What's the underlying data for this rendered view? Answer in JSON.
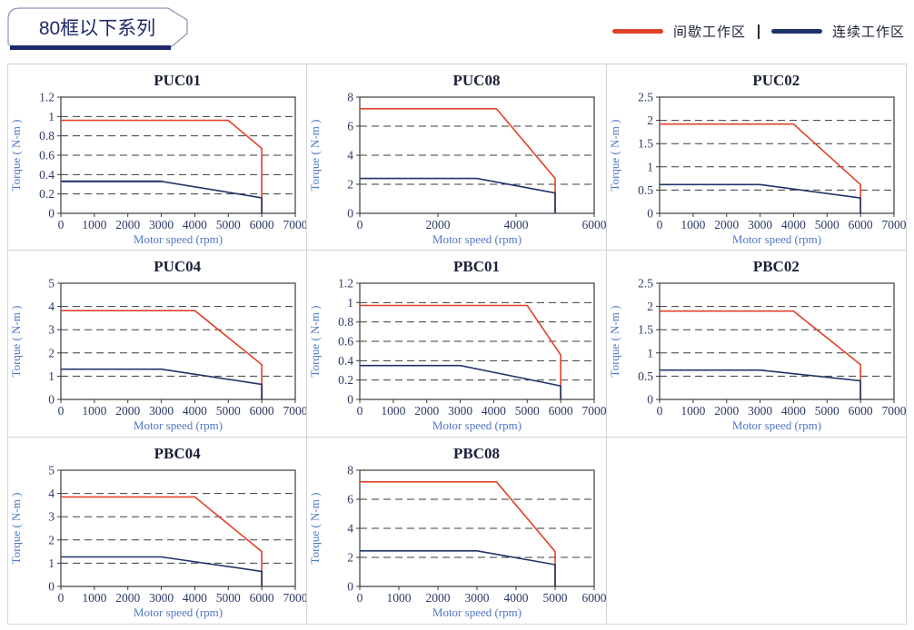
{
  "header": {
    "title": "80框以下系列"
  },
  "legend": {
    "items": [
      {
        "label": "间歇工作区",
        "color": "#e04228"
      },
      {
        "label": "连续工作区",
        "color": "#20346a"
      }
    ],
    "separator": "|"
  },
  "chart_data": [
    {
      "type": "line",
      "title": "PUC01",
      "xlabel": "Motor speed (rpm)",
      "ylabel": "Torque ( N-m )",
      "xlim": [
        0,
        7000
      ],
      "ylim": [
        0,
        1.2
      ],
      "xticks": [
        0,
        1000,
        2000,
        3000,
        4000,
        5000,
        6000,
        7000
      ],
      "yticks": [
        0,
        0.2,
        0.4,
        0.6,
        0.8,
        1,
        1.2
      ],
      "grid": "dashed-horizontal",
      "legend_position": "none",
      "series": [
        {
          "name": "连续工作区",
          "color": "#a9b2c8",
          "width": 3,
          "points": [
            [
              0,
              0.33
            ],
            [
              3000,
              0.33
            ]
          ]
        },
        {
          "name": "间歇工作区",
          "color": "#e04228",
          "width": 1.6,
          "points": [
            [
              0,
              0.96
            ],
            [
              5000,
              0.96
            ],
            [
              6000,
              0.67
            ],
            [
              6000,
              0
            ]
          ]
        },
        {
          "name": "连续工作区",
          "color": "#20346a",
          "width": 1.6,
          "points": [
            [
              0,
              0.33
            ],
            [
              3000,
              0.33
            ],
            [
              6000,
              0.16
            ],
            [
              6000,
              0
            ]
          ]
        }
      ]
    },
    {
      "type": "line",
      "title": "PUC08",
      "xlabel": "Motor speed (rpm)",
      "ylabel": "Torque ( N-m )",
      "xlim": [
        0,
        6000
      ],
      "ylim": [
        0,
        8
      ],
      "xticks": [
        0,
        2000,
        4000,
        6000
      ],
      "yticks": [
        0,
        2,
        4,
        6,
        8
      ],
      "grid": "dashed-horizontal",
      "legend_position": "none",
      "series": [
        {
          "name": "间歇工作区",
          "color": "#e04228",
          "width": 1.6,
          "points": [
            [
              0,
              7.2
            ],
            [
              3500,
              7.2
            ],
            [
              5000,
              2.4
            ],
            [
              5000,
              0
            ]
          ]
        },
        {
          "name": "连续工作区",
          "color": "#20346a",
          "width": 1.6,
          "points": [
            [
              0,
              2.4
            ],
            [
              3000,
              2.4
            ],
            [
              5000,
              1.4
            ],
            [
              5000,
              0
            ]
          ]
        }
      ]
    },
    {
      "type": "line",
      "title": "PUC02",
      "xlabel": "Motor speed (rpm)",
      "ylabel": "Torque ( N-m )",
      "xlim": [
        0,
        7000
      ],
      "ylim": [
        0,
        2.5
      ],
      "xticks": [
        0,
        1000,
        2000,
        3000,
        4000,
        5000,
        6000,
        7000
      ],
      "yticks": [
        0,
        0.5,
        1,
        1.5,
        2,
        2.5
      ],
      "grid": "dashed-horizontal",
      "legend_position": "none",
      "series": [
        {
          "name": "间歇工作区",
          "color": "#e04228",
          "width": 1.6,
          "points": [
            [
              0,
              1.92
            ],
            [
              4000,
              1.92
            ],
            [
              6000,
              0.62
            ],
            [
              6000,
              0
            ]
          ]
        },
        {
          "name": "连续工作区",
          "color": "#20346a",
          "width": 1.6,
          "points": [
            [
              0,
              0.62
            ],
            [
              3000,
              0.62
            ],
            [
              6000,
              0.33
            ],
            [
              6000,
              0
            ]
          ]
        }
      ]
    },
    {
      "type": "line",
      "title": "PUC04",
      "xlabel": "Motor speed (rpm)",
      "ylabel": "Torque ( N-m )",
      "xlim": [
        0,
        7000
      ],
      "ylim": [
        0,
        5
      ],
      "xticks": [
        0,
        1000,
        2000,
        3000,
        4000,
        5000,
        6000,
        7000
      ],
      "yticks": [
        0,
        1,
        2,
        3,
        4,
        5
      ],
      "grid": "dashed-horizontal",
      "legend_position": "none",
      "series": [
        {
          "name": "间歇工作区",
          "color": "#e04228",
          "width": 1.6,
          "points": [
            [
              0,
              3.82
            ],
            [
              4000,
              3.82
            ],
            [
              6000,
              1.5
            ],
            [
              6000,
              0
            ]
          ]
        },
        {
          "name": "连续工作区",
          "color": "#20346a",
          "width": 1.6,
          "points": [
            [
              0,
              1.3
            ],
            [
              3000,
              1.3
            ],
            [
              6000,
              0.65
            ],
            [
              6000,
              0
            ]
          ]
        }
      ]
    },
    {
      "type": "line",
      "title": "PBC01",
      "xlabel": "Motor speed (rpm)",
      "ylabel": "Torque ( N-m )",
      "xlim": [
        0,
        7000
      ],
      "ylim": [
        0,
        1.2
      ],
      "xticks": [
        0,
        1000,
        2000,
        3000,
        4000,
        5000,
        6000,
        7000
      ],
      "yticks": [
        0,
        0.2,
        0.4,
        0.6,
        0.8,
        1,
        1.2
      ],
      "grid": "dashed-horizontal",
      "legend_position": "none",
      "series": [
        {
          "name": "间歇工作区",
          "color": "#e04228",
          "width": 1.6,
          "points": [
            [
              0,
              0.97
            ],
            [
              5000,
              0.97
            ],
            [
              6000,
              0.46
            ],
            [
              6000,
              0
            ]
          ]
        },
        {
          "name": "连续工作区",
          "color": "#20346a",
          "width": 1.6,
          "points": [
            [
              0,
              0.35
            ],
            [
              3000,
              0.35
            ],
            [
              6000,
              0.14
            ],
            [
              6000,
              0
            ]
          ]
        }
      ]
    },
    {
      "type": "line",
      "title": "PBC02",
      "xlabel": "Motor speed (rpm)",
      "ylabel": "Torque ( N-m )",
      "xlim": [
        0,
        7000
      ],
      "ylim": [
        0,
        2.5
      ],
      "xticks": [
        0,
        1000,
        2000,
        3000,
        4000,
        5000,
        6000,
        7000
      ],
      "yticks": [
        0,
        0.5,
        1,
        1.5,
        2,
        2.5
      ],
      "grid": "dashed-horizontal",
      "legend_position": "none",
      "series": [
        {
          "name": "间歇工作区",
          "color": "#e04228",
          "width": 1.6,
          "points": [
            [
              0,
              1.9
            ],
            [
              4000,
              1.9
            ],
            [
              6000,
              0.75
            ],
            [
              6000,
              0
            ]
          ]
        },
        {
          "name": "连续工作区",
          "color": "#20346a",
          "width": 1.6,
          "points": [
            [
              0,
              0.63
            ],
            [
              3000,
              0.63
            ],
            [
              6000,
              0.4
            ],
            [
              6000,
              0
            ]
          ]
        }
      ]
    },
    {
      "type": "line",
      "title": "PBC04",
      "xlabel": "Motor speed (rpm)",
      "ylabel": "Torque ( N-m )",
      "xlim": [
        0,
        7000
      ],
      "ylim": [
        0,
        5
      ],
      "xticks": [
        0,
        1000,
        2000,
        3000,
        4000,
        5000,
        6000,
        7000
      ],
      "yticks": [
        0,
        1,
        2,
        3,
        4,
        5
      ],
      "grid": "dashed-horizontal",
      "legend_position": "none",
      "series": [
        {
          "name": "间歇工作区",
          "color": "#e04228",
          "width": 1.6,
          "points": [
            [
              0,
              3.85
            ],
            [
              4000,
              3.85
            ],
            [
              6000,
              1.5
            ],
            [
              6000,
              0
            ]
          ]
        },
        {
          "name": "连续工作区",
          "color": "#20346a",
          "width": 1.6,
          "points": [
            [
              0,
              1.27
            ],
            [
              3000,
              1.27
            ],
            [
              6000,
              0.65
            ],
            [
              6000,
              0
            ]
          ]
        }
      ]
    },
    {
      "type": "line",
      "title": "PBC08",
      "xlabel": "Motor speed (rpm)",
      "ylabel": "Torque ( N-m )",
      "xlim": [
        0,
        6000
      ],
      "ylim": [
        0,
        8
      ],
      "xticks": [
        0,
        1000,
        2000,
        3000,
        4000,
        5000,
        6000
      ],
      "yticks": [
        0,
        2,
        4,
        6,
        8
      ],
      "grid": "dashed-horizontal",
      "legend_position": "none",
      "series": [
        {
          "name": "间歇工作区",
          "color": "#e04228",
          "width": 1.6,
          "points": [
            [
              0,
              7.2
            ],
            [
              3500,
              7.2
            ],
            [
              5000,
              2.4
            ],
            [
              5000,
              0
            ]
          ]
        },
        {
          "name": "连续工作区",
          "color": "#20346a",
          "width": 1.6,
          "points": [
            [
              0,
              2.45
            ],
            [
              3000,
              2.45
            ],
            [
              5000,
              1.5
            ],
            [
              5000,
              0
            ]
          ]
        }
      ]
    }
  ]
}
